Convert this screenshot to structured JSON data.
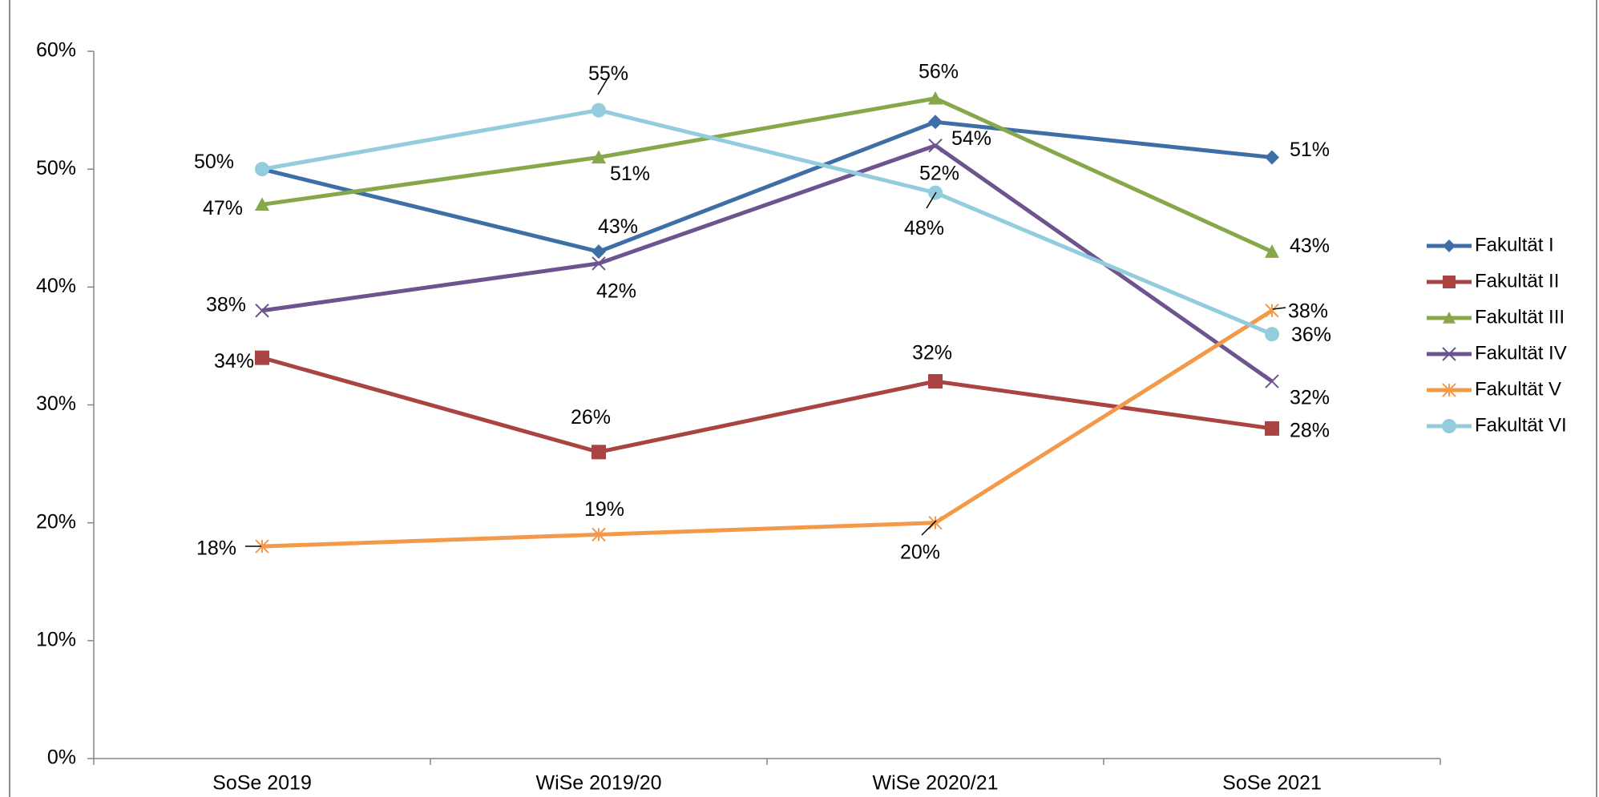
{
  "chart_data": {
    "type": "line",
    "title": "",
    "xlabel": "",
    "ylabel": "",
    "categories": [
      "SoSe 2019",
      "WiSe 2019/20",
      "WiSe 2020/21",
      "SoSe 2021"
    ],
    "ylim": [
      0,
      60
    ],
    "yticks": [
      0,
      10,
      20,
      30,
      40,
      50,
      60
    ],
    "ytick_labels": [
      "0%",
      "10%",
      "20%",
      "30%",
      "40%",
      "50%",
      "60%"
    ],
    "grid": false,
    "legend_position": "right",
    "series": [
      {
        "name": "Fakultät I",
        "color": "#3E6EA6",
        "marker": "diamond",
        "values": [
          50,
          43,
          54,
          51
        ],
        "labels": [
          "",
          "43%",
          "54%",
          "51%"
        ]
      },
      {
        "name": "Fakultät II",
        "color": "#A94442",
        "marker": "square",
        "values": [
          34,
          26,
          32,
          28
        ],
        "labels": [
          "34%",
          "26%",
          "32%",
          "28%"
        ]
      },
      {
        "name": "Fakultät III",
        "color": "#86A84A",
        "marker": "triangle",
        "values": [
          47,
          51,
          56,
          43
        ],
        "labels": [
          "47%",
          "51%",
          "56%",
          "43%"
        ]
      },
      {
        "name": "Fakultät IV",
        "color": "#6E548F",
        "marker": "x",
        "values": [
          38,
          42,
          52,
          32
        ],
        "labels": [
          "38%",
          "42%",
          "52%",
          "32%"
        ]
      },
      {
        "name": "Fakultät V",
        "color": "#F39A4A",
        "marker": "star",
        "values": [
          18,
          19,
          20,
          38
        ],
        "labels": [
          "18%",
          "19%",
          "20%",
          "38%"
        ]
      },
      {
        "name": "Fakultät VI",
        "color": "#93CDDD",
        "marker": "circle",
        "values": [
          50,
          55,
          48,
          36
        ],
        "labels": [
          "50%",
          "55%",
          "48%",
          "36%"
        ]
      }
    ]
  }
}
